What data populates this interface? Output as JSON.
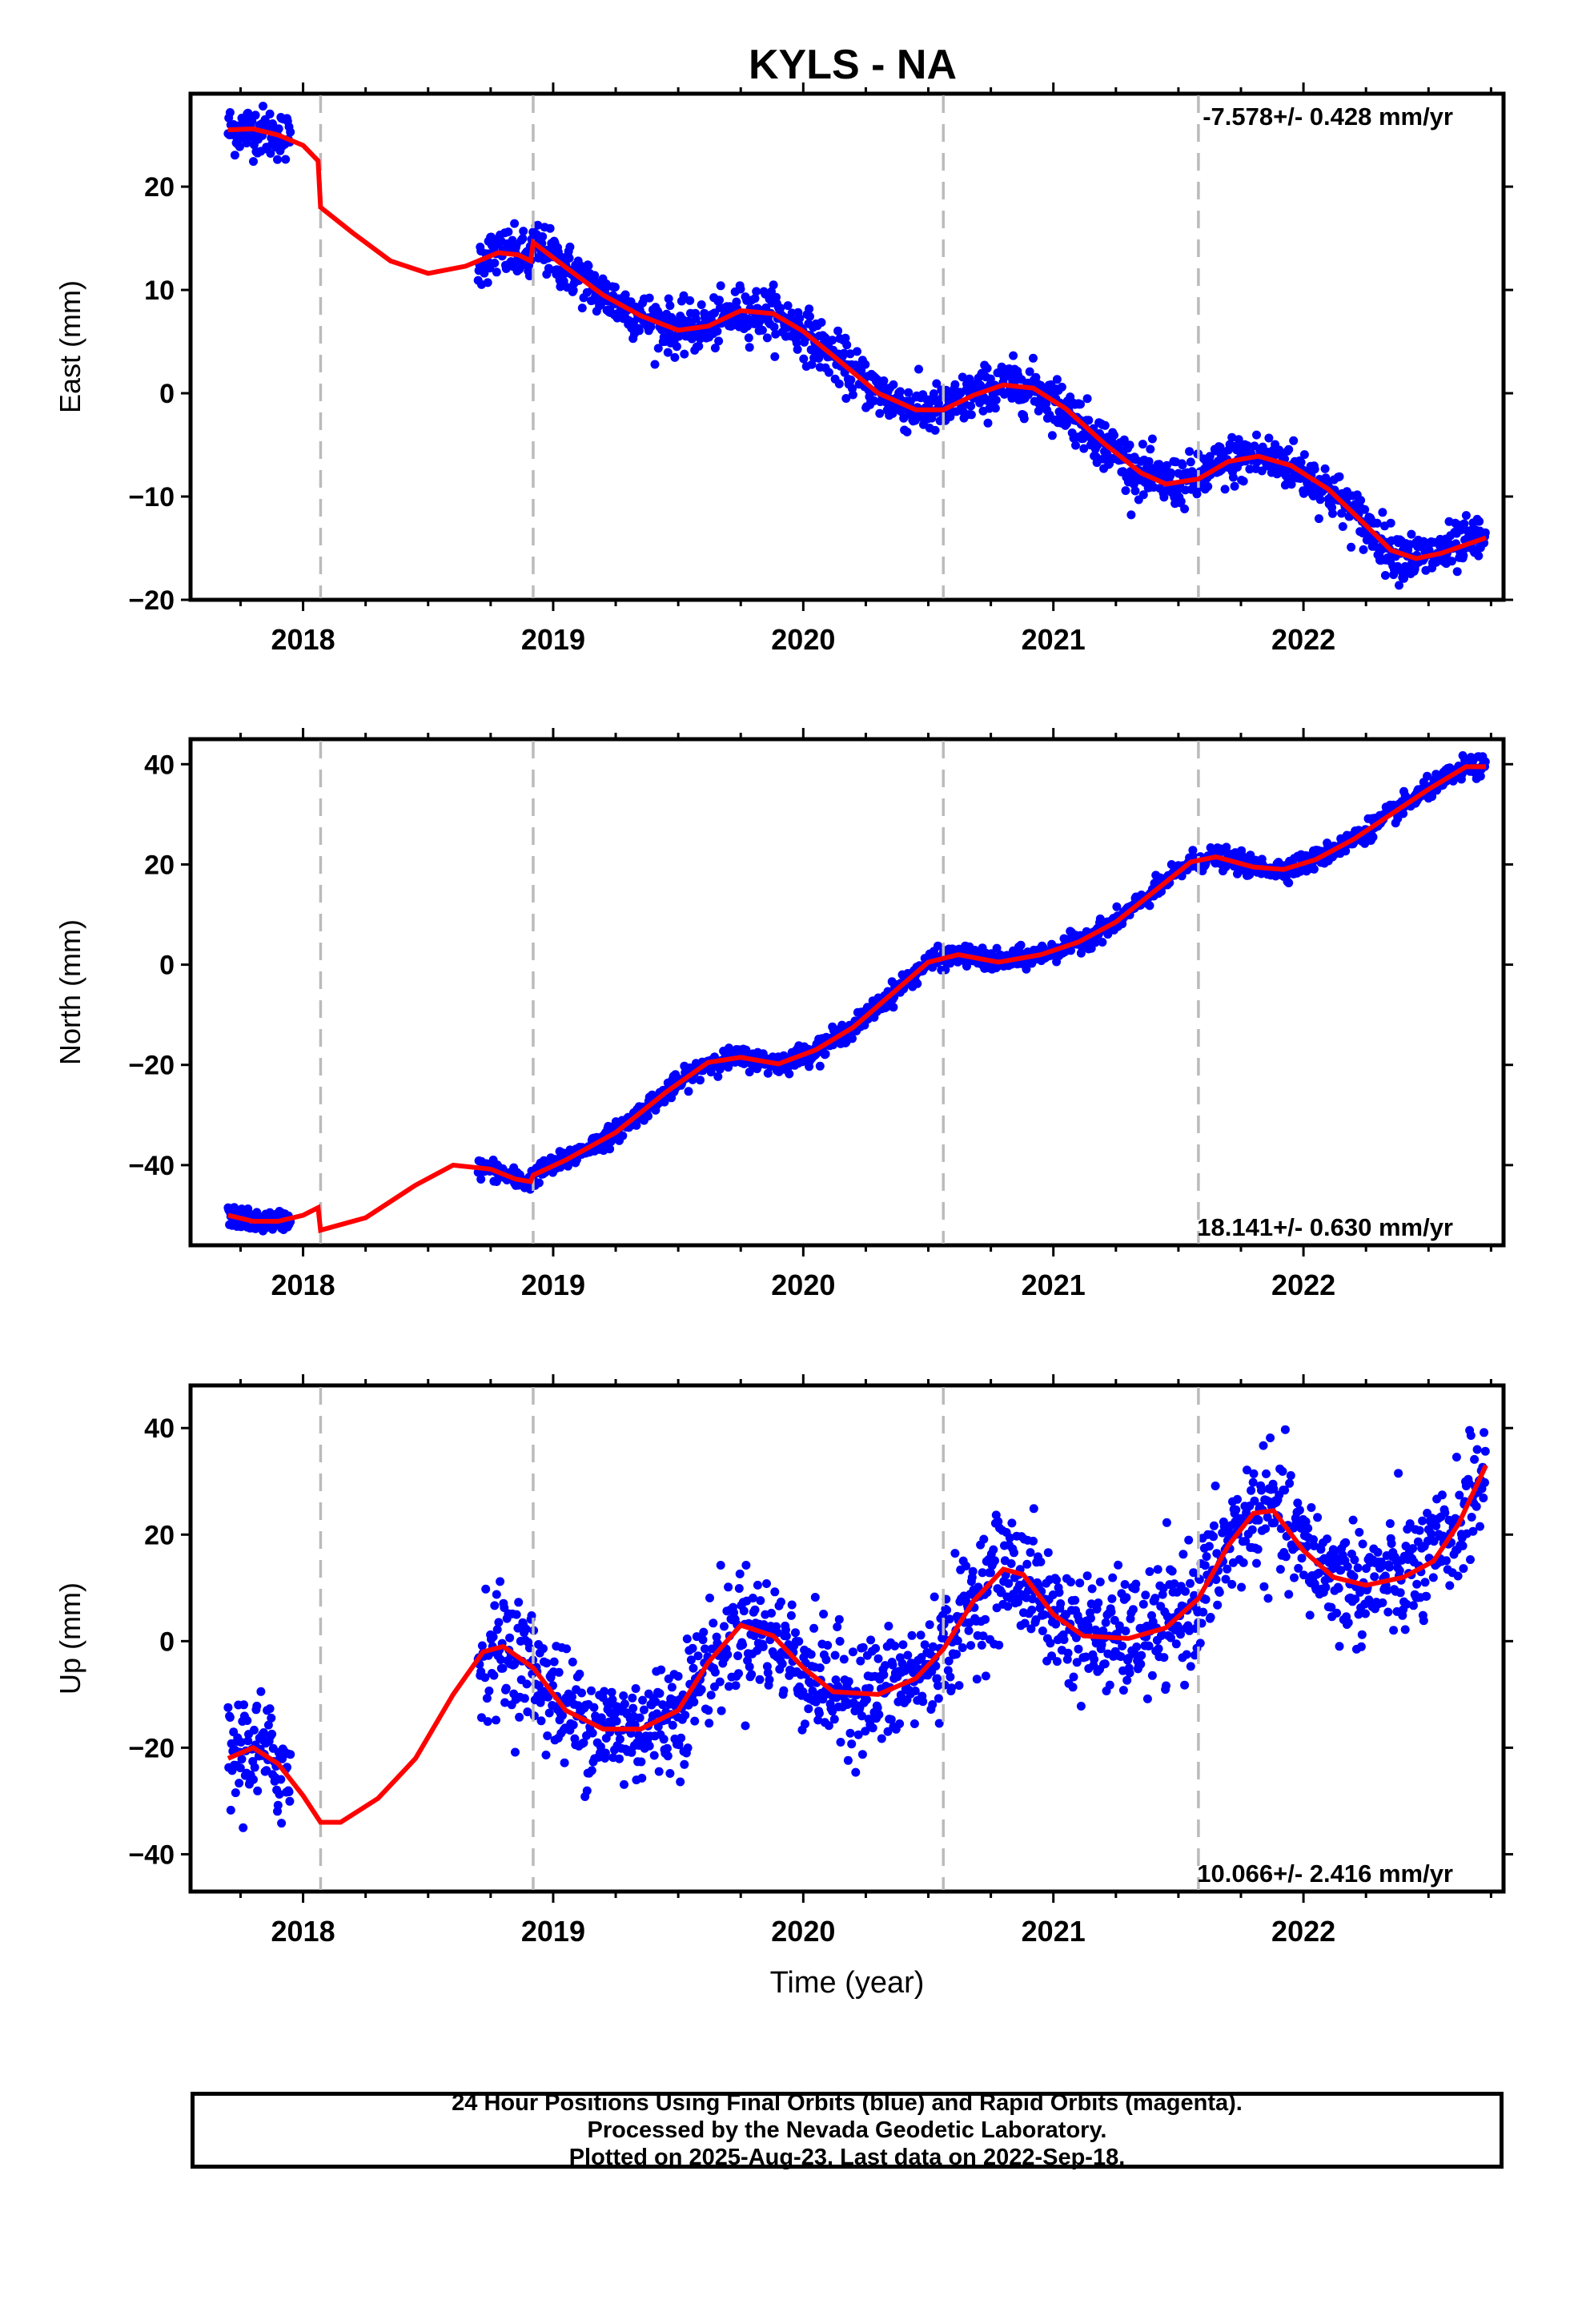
{
  "chart_data": {
    "type": "scatter",
    "title": "KYLS - NA",
    "xlabel": "Time (year)",
    "x_ticks": [
      2018,
      2019,
      2020,
      2021,
      2022
    ],
    "xlim": [
      2017.55,
      2022.8
    ],
    "grid": false,
    "event_lines_x": [
      2018.07,
      2018.92,
      2020.56,
      2021.58
    ],
    "colors": {
      "points": "#0000ff",
      "model": "#ff0000",
      "event_lines": "#bbbbbb"
    },
    "panels": [
      {
        "name": "east",
        "ylabel": "East (mm)",
        "ylim": [
          -20,
          29
        ],
        "y_ticks": [
          -20,
          -10,
          0,
          10,
          20
        ],
        "rate_label": "-7.578+/- 0.428 mm/yr",
        "rate_label_position": "top-right",
        "segments": [
          [
            2017.7,
            2017.95
          ],
          [
            2018.7,
            2022.73
          ]
        ],
        "model": [
          [
            2017.7,
            25.5
          ],
          [
            2017.8,
            25.6
          ],
          [
            2017.9,
            25.0
          ],
          [
            2018.0,
            24.0
          ],
          [
            2018.06,
            22.5
          ],
          [
            2018.07,
            18.0
          ],
          [
            2018.2,
            15.5
          ],
          [
            2018.35,
            12.8
          ],
          [
            2018.5,
            11.6
          ],
          [
            2018.65,
            12.3
          ],
          [
            2018.78,
            13.6
          ],
          [
            2018.86,
            13.4
          ],
          [
            2018.91,
            12.8
          ],
          [
            2018.92,
            14.6
          ],
          [
            2019.05,
            12.2
          ],
          [
            2019.2,
            9.5
          ],
          [
            2019.35,
            7.5
          ],
          [
            2019.5,
            6.1
          ],
          [
            2019.62,
            6.5
          ],
          [
            2019.75,
            8.0
          ],
          [
            2019.88,
            7.7
          ],
          [
            2020.0,
            6.0
          ],
          [
            2020.15,
            3.0
          ],
          [
            2020.3,
            0.0
          ],
          [
            2020.45,
            -1.6
          ],
          [
            2020.56,
            -1.6
          ],
          [
            2020.68,
            -0.2
          ],
          [
            2020.8,
            0.8
          ],
          [
            2020.92,
            0.5
          ],
          [
            2021.05,
            -1.5
          ],
          [
            2021.2,
            -4.8
          ],
          [
            2021.35,
            -7.7
          ],
          [
            2021.45,
            -8.8
          ],
          [
            2021.58,
            -8.3
          ],
          [
            2021.7,
            -6.6
          ],
          [
            2021.82,
            -6.1
          ],
          [
            2021.95,
            -7.0
          ],
          [
            2022.1,
            -9.3
          ],
          [
            2022.25,
            -12.8
          ],
          [
            2022.35,
            -15.2
          ],
          [
            2022.45,
            -16.0
          ],
          [
            2022.55,
            -15.5
          ],
          [
            2022.73,
            -14.0
          ]
        ],
        "noise": 1.2
      },
      {
        "name": "north",
        "ylabel": "North (mm)",
        "ylim": [
          -56,
          45
        ],
        "y_ticks": [
          -40,
          -20,
          0,
          20,
          40
        ],
        "rate_label": "18.141+/- 0.630 mm/yr",
        "rate_label_position": "bottom-right",
        "segments": [
          [
            2017.7,
            2017.95
          ],
          [
            2018.7,
            2022.73
          ]
        ],
        "model": [
          [
            2017.7,
            -50.0
          ],
          [
            2017.8,
            -51.2
          ],
          [
            2017.9,
            -51.2
          ],
          [
            2018.0,
            -50.0
          ],
          [
            2018.06,
            -48.5
          ],
          [
            2018.07,
            -53.0
          ],
          [
            2018.25,
            -50.5
          ],
          [
            2018.45,
            -44.0
          ],
          [
            2018.6,
            -40.0
          ],
          [
            2018.75,
            -40.8
          ],
          [
            2018.85,
            -42.8
          ],
          [
            2018.91,
            -43.3
          ],
          [
            2018.92,
            -42.0
          ],
          [
            2019.05,
            -39.0
          ],
          [
            2019.25,
            -33.5
          ],
          [
            2019.45,
            -25.5
          ],
          [
            2019.62,
            -19.5
          ],
          [
            2019.75,
            -18.5
          ],
          [
            2019.9,
            -19.8
          ],
          [
            2020.05,
            -17.0
          ],
          [
            2020.2,
            -12.5
          ],
          [
            2020.35,
            -6.0
          ],
          [
            2020.5,
            0.5
          ],
          [
            2020.62,
            2.0
          ],
          [
            2020.78,
            0.5
          ],
          [
            2020.95,
            2.0
          ],
          [
            2021.1,
            4.5
          ],
          [
            2021.25,
            8.5
          ],
          [
            2021.4,
            14.5
          ],
          [
            2021.55,
            20.5
          ],
          [
            2021.65,
            21.5
          ],
          [
            2021.8,
            19.5
          ],
          [
            2021.92,
            19.0
          ],
          [
            2022.05,
            21.0
          ],
          [
            2022.2,
            25.0
          ],
          [
            2022.35,
            30.0
          ],
          [
            2022.5,
            35.0
          ],
          [
            2022.65,
            39.5
          ],
          [
            2022.73,
            39.5
          ]
        ],
        "noise": 1.0
      },
      {
        "name": "up",
        "ylabel": "Up (mm)",
        "ylim": [
          -47,
          48
        ],
        "y_ticks": [
          -40,
          -20,
          0,
          20,
          40
        ],
        "rate_label": "10.066+/- 2.416 mm/yr",
        "rate_label_position": "bottom-right",
        "segments": [
          [
            2017.7,
            2017.95
          ],
          [
            2018.7,
            2022.73
          ]
        ],
        "model": [
          [
            2017.7,
            -22.0
          ],
          [
            2017.8,
            -20.0
          ],
          [
            2017.9,
            -23.0
          ],
          [
            2018.0,
            -29.0
          ],
          [
            2018.07,
            -34.0
          ],
          [
            2018.15,
            -34.0
          ],
          [
            2018.3,
            -29.5
          ],
          [
            2018.45,
            -22.0
          ],
          [
            2018.6,
            -10.0
          ],
          [
            2018.72,
            -2.0
          ],
          [
            2018.8,
            -1.0
          ],
          [
            2018.92,
            -5.0
          ],
          [
            2019.05,
            -13.0
          ],
          [
            2019.2,
            -16.5
          ],
          [
            2019.35,
            -16.5
          ],
          [
            2019.5,
            -13.0
          ],
          [
            2019.62,
            -4.0
          ],
          [
            2019.75,
            3.0
          ],
          [
            2019.88,
            1.0
          ],
          [
            2020.0,
            -5.0
          ],
          [
            2020.12,
            -9.5
          ],
          [
            2020.3,
            -10.0
          ],
          [
            2020.45,
            -7.0
          ],
          [
            2020.56,
            -1.5
          ],
          [
            2020.68,
            7.5
          ],
          [
            2020.8,
            13.5
          ],
          [
            2020.88,
            12.5
          ],
          [
            2021.0,
            5.0
          ],
          [
            2021.12,
            1.0
          ],
          [
            2021.3,
            0.5
          ],
          [
            2021.45,
            2.5
          ],
          [
            2021.58,
            8.0
          ],
          [
            2021.7,
            18.0
          ],
          [
            2021.8,
            24.0
          ],
          [
            2021.88,
            24.5
          ],
          [
            2022.0,
            17.0
          ],
          [
            2022.12,
            12.0
          ],
          [
            2022.25,
            10.5
          ],
          [
            2022.4,
            12.0
          ],
          [
            2022.52,
            15.0
          ],
          [
            2022.62,
            22.0
          ],
          [
            2022.73,
            33.0
          ]
        ],
        "noise": 5.5
      }
    ]
  },
  "footer": {
    "line1": "24 Hour Positions Using Final Orbits (blue) and Rapid Orbits (magenta).",
    "line2": "Processed by the Nevada Geodetic Laboratory.",
    "line3": "Plotted on 2025-Aug-23. Last data on 2022-Sep-18."
  }
}
